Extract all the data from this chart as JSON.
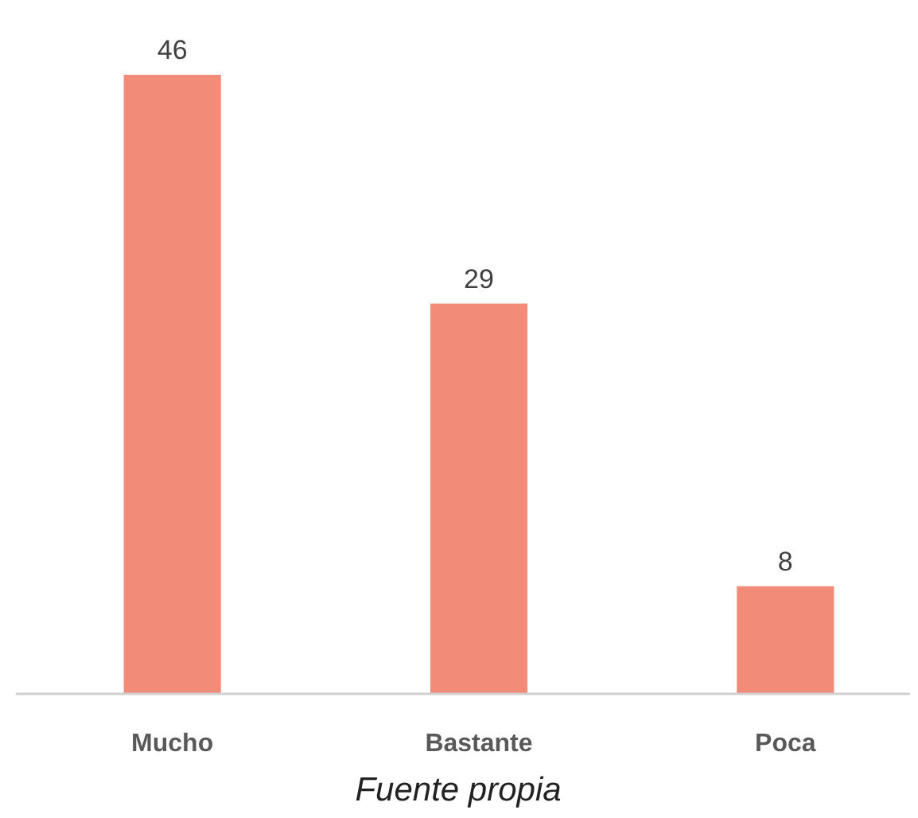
{
  "chart_data": {
    "type": "bar",
    "categories": [
      "Mucho",
      "Bastante",
      "Poca"
    ],
    "values": [
      46,
      29,
      8
    ],
    "color": "#f28b77",
    "data_labels": true,
    "annotations": [
      "Fuente propia"
    ]
  }
}
